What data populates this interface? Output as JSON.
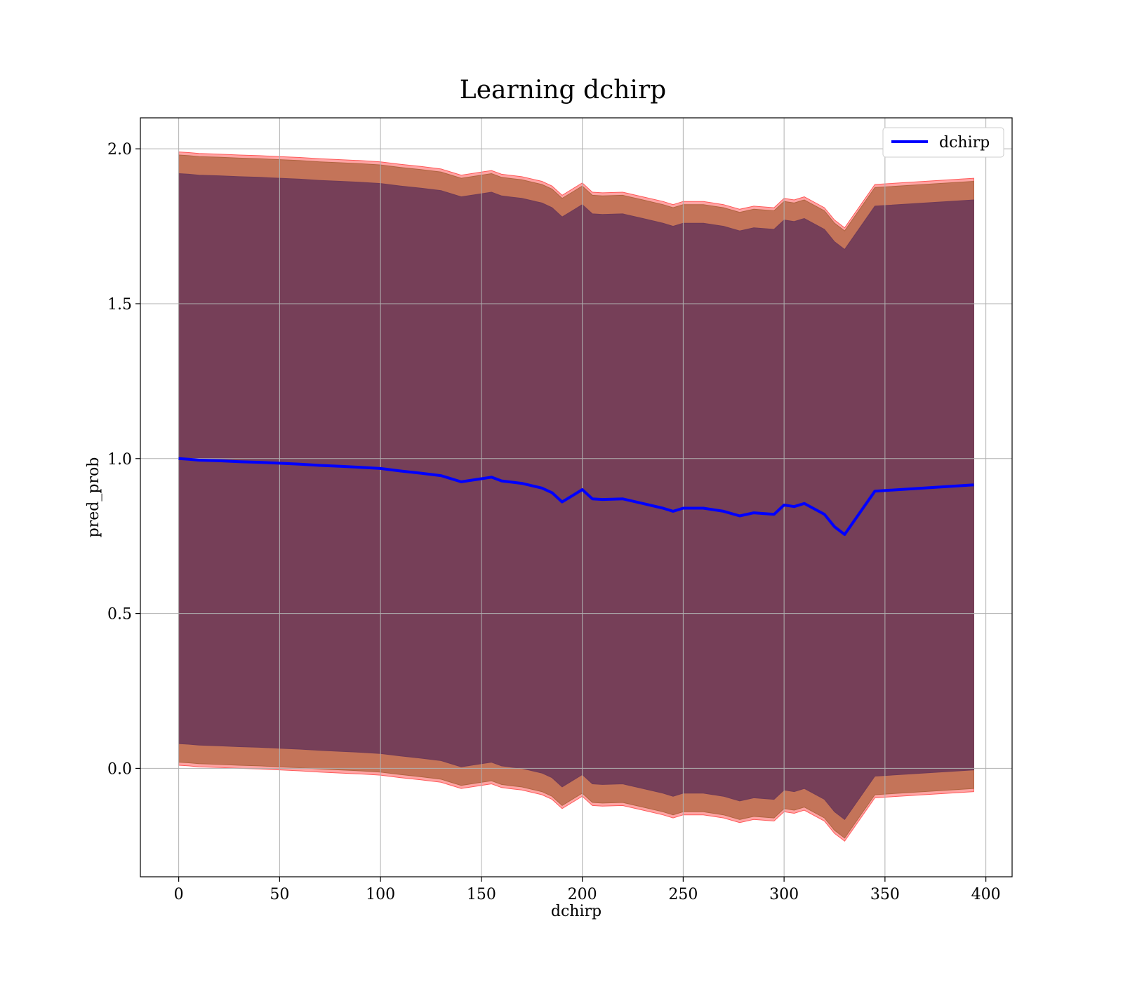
{
  "chart_data": {
    "type": "line",
    "title": "Learning dchirp",
    "xlabel": "dchirp",
    "ylabel": "pred_prob",
    "xlim": [
      -19,
      413
    ],
    "ylim": [
      -0.35,
      2.1
    ],
    "xticks": [
      0,
      50,
      100,
      150,
      200,
      250,
      300,
      350,
      400
    ],
    "yticks": [
      0.0,
      0.5,
      1.0,
      1.5,
      2.0
    ],
    "xtick_labels": [
      "0",
      "50",
      "100",
      "150",
      "200",
      "250",
      "300",
      "350",
      "400"
    ],
    "ytick_labels": [
      "0.0",
      "0.5",
      "1.0",
      "1.5",
      "2.0"
    ],
    "grid": true,
    "legend_position": "top-right",
    "colors": {
      "line": "#0000ff",
      "band_outer": "#ff5a5a",
      "band_middle": "#b06440",
      "band_inner": "#6e3a58",
      "grid": "#b0b0b0"
    },
    "series": [
      {
        "name": "dchirp",
        "x": [
          0,
          5,
          10,
          20,
          30,
          40,
          50,
          60,
          70,
          80,
          90,
          100,
          110,
          120,
          130,
          140,
          150,
          155,
          160,
          165,
          170,
          180,
          185,
          190,
          195,
          200,
          205,
          210,
          220,
          230,
          240,
          245,
          250,
          260,
          270,
          278,
          285,
          295,
          300,
          305,
          310,
          320,
          325,
          330,
          345,
          394
        ],
        "y": [
          1.0,
          0.998,
          0.995,
          0.993,
          0.99,
          0.988,
          0.985,
          0.982,
          0.978,
          0.975,
          0.972,
          0.968,
          0.96,
          0.953,
          0.945,
          0.925,
          0.935,
          0.94,
          0.928,
          0.924,
          0.92,
          0.905,
          0.89,
          0.86,
          0.88,
          0.9,
          0.87,
          0.868,
          0.87,
          0.855,
          0.84,
          0.83,
          0.84,
          0.84,
          0.83,
          0.815,
          0.825,
          0.82,
          0.85,
          0.845,
          0.855,
          0.82,
          0.78,
          0.755,
          0.895,
          0.915
        ]
      }
    ],
    "bands": {
      "outer_offset": [
        0.99,
        0.99,
        0.99,
        0.99,
        0.99,
        0.99,
        0.99,
        0.99,
        0.99,
        0.99,
        0.99,
        0.99,
        0.99,
        0.99,
        0.99,
        0.99,
        0.99,
        0.99,
        0.99,
        0.99,
        0.99,
        0.99,
        0.99,
        0.99,
        0.99,
        0.99,
        0.99,
        0.99,
        0.99,
        0.99,
        0.99,
        0.99,
        0.99,
        0.99,
        0.99,
        0.99,
        0.99,
        0.99,
        0.99,
        0.99,
        0.99,
        0.99,
        0.99,
        0.99,
        0.99,
        0.99
      ],
      "middle_offset": [
        0.98,
        0.98,
        0.98,
        0.98,
        0.98,
        0.98,
        0.98,
        0.98,
        0.98,
        0.98,
        0.98,
        0.98,
        0.98,
        0.98,
        0.98,
        0.98,
        0.98,
        0.98,
        0.98,
        0.98,
        0.98,
        0.98,
        0.98,
        0.98,
        0.98,
        0.98,
        0.98,
        0.98,
        0.98,
        0.98,
        0.98,
        0.98,
        0.98,
        0.98,
        0.98,
        0.98,
        0.98,
        0.98,
        0.98,
        0.98,
        0.98,
        0.98,
        0.98,
        0.98,
        0.98,
        0.98
      ],
      "inner_offset": [
        0.92,
        0.92,
        0.92,
        0.92,
        0.92,
        0.92,
        0.92,
        0.92,
        0.92,
        0.92,
        0.92,
        0.92,
        0.92,
        0.92,
        0.92,
        0.92,
        0.92,
        0.92,
        0.92,
        0.92,
        0.92,
        0.92,
        0.92,
        0.92,
        0.92,
        0.92,
        0.92,
        0.92,
        0.92,
        0.92,
        0.92,
        0.92,
        0.92,
        0.92,
        0.92,
        0.92,
        0.92,
        0.92,
        0.92,
        0.92,
        0.92,
        0.92,
        0.92,
        0.92,
        0.92,
        0.92
      ]
    }
  }
}
